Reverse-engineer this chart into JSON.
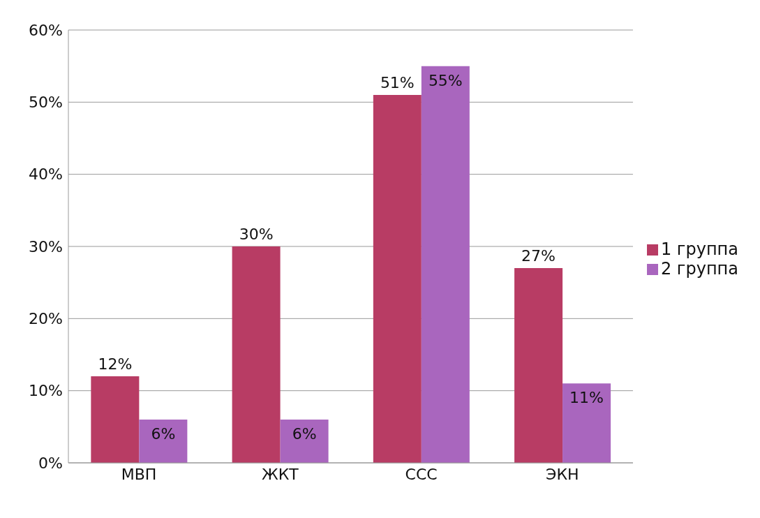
{
  "chart_data": {
    "type": "bar",
    "categories": [
      "МВП",
      "ЖКТ",
      "ССС",
      "ЭКН"
    ],
    "series": [
      {
        "name": "1 группа",
        "color": "#b83c64",
        "values": [
          12,
          30,
          51,
          27
        ],
        "value_labels": [
          "12%",
          "30%",
          "51%",
          "27%"
        ]
      },
      {
        "name": "2 группа",
        "color": "#a966be",
        "values": [
          6,
          6,
          55,
          11
        ],
        "value_labels": [
          "6%",
          "6%",
          "55%",
          "11%"
        ]
      }
    ],
    "ylim": [
      0,
      60
    ],
    "yticks": [
      {
        "value": 0,
        "label": "0%"
      },
      {
        "value": 10,
        "label": "10%"
      },
      {
        "value": 20,
        "label": "20%"
      },
      {
        "value": 30,
        "label": "30%"
      },
      {
        "value": 40,
        "label": "40%"
      },
      {
        "value": 50,
        "label": "50%"
      },
      {
        "value": 60,
        "label": "60%"
      }
    ],
    "grid": "y",
    "legend": "right"
  }
}
